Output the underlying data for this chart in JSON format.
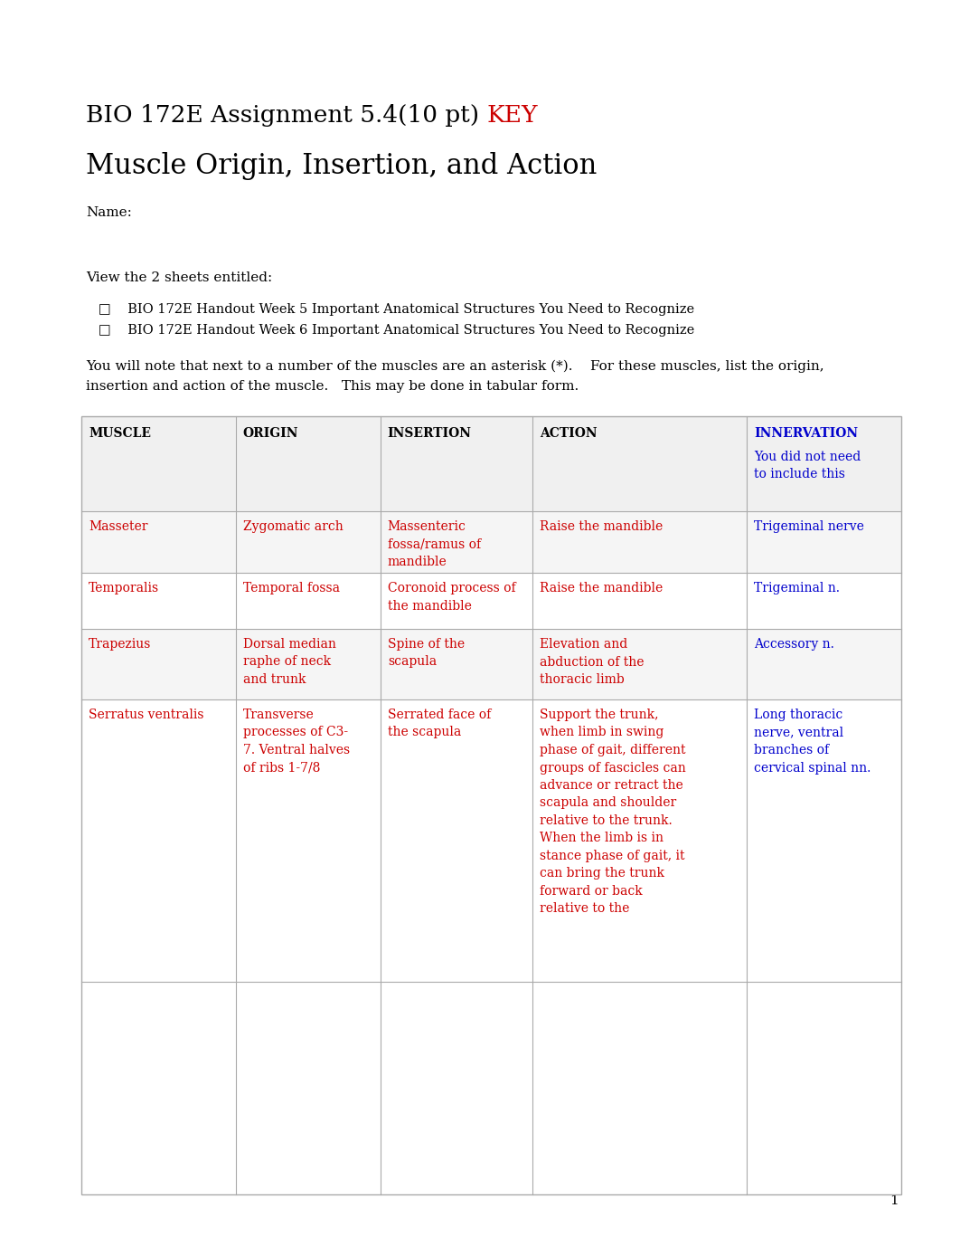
{
  "bg_color": "#ffffff",
  "title1_black": "BIO 172E Assignment 5.4(10 pt) ",
  "title1_red": "KEY",
  "title2": "Muscle Origin, Insertion, and Action",
  "name_label": "Name:",
  "view_text": "View the 2 sheets entitled:",
  "bullet1": "   □    BIO 172E Handout Week 5 Important Anatomical Structures You Need to Recognize",
  "bullet2": "   □    BIO 172E Handout Week 6 Important Anatomical Structures You Need to Recognize",
  "body_text1": "You will note that next to a number of the muscles are an asterisk (*).    For these muscles, list the origin,",
  "body_text2": "insertion and action of the muscle.   This may be done in tabular form.",
  "page_number": "1",
  "table_headers": [
    "MUSCLE",
    "ORIGIN",
    "INSERTION",
    "ACTION",
    "INNERVATION"
  ],
  "innervation_note": "You did not need\nto include this",
  "rows": [
    {
      "muscle": "Masseter",
      "origin": "Zygomatic arch",
      "insertion": "Massenteric\nfossa/ramus of\nmandible",
      "action": "Raise the mandible",
      "innervation": "Trigeminal nerve"
    },
    {
      "muscle": "Temporalis",
      "origin": "Temporal fossa",
      "insertion": "Coronoid process of\nthe mandible",
      "action": "Raise the mandible",
      "innervation": "Trigeminal n."
    },
    {
      "muscle": "Trapezius",
      "origin": "Dorsal median\nraphe of neck\nand trunk",
      "insertion": "Spine of the\nscapula",
      "action": "Elevation and\nabduction of the\nthoracic limb",
      "innervation": "Accessory n."
    },
    {
      "muscle": "Serratus ventralis",
      "origin": "Transverse\nprocesses of C3-\n7. Ventral halves\nof ribs 1-7/8",
      "insertion": "Serrated face of\nthe scapula",
      "action": "Support the trunk,\nwhen limb in swing\nphase of gait, different\ngroups of fascicles can\nadvance or retract the\nscapula and shoulder\nrelative to the trunk.\nWhen the limb is in\nstance phase of gait, it\ncan bring the trunk\nforward or back\nrelative to the",
      "innervation": "Long thoracic\nnerve, ventral\nbranches of\ncervical spinal nn."
    }
  ],
  "red_color": "#cc0000",
  "blue_color": "#0000cc",
  "black_color": "#000000",
  "table_border_color": "#aaaaaa",
  "col_props": [
    0.16,
    0.15,
    0.158,
    0.222,
    0.16
  ]
}
